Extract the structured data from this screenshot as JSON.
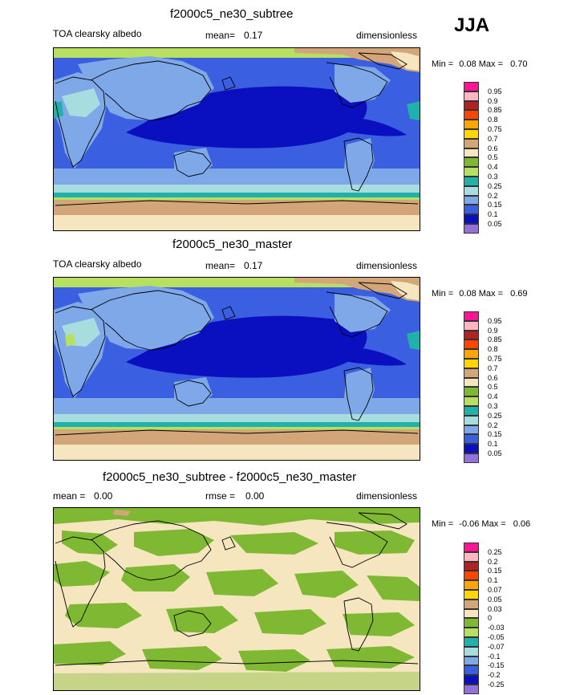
{
  "season": "JJA",
  "panels": [
    {
      "title": "f2000c5_ne30_subtree",
      "left_label": "TOA clearsky albedo",
      "mean_label": "mean=",
      "mean_value": "0.17",
      "units": "dimensionless",
      "min_label": "Min =",
      "min_value": "0.08",
      "max_label": "Max =",
      "max_value": "0.70",
      "colorbar_labels": [
        "0.95",
        "0.9",
        "0.85",
        "0.8",
        "0.75",
        "0.7",
        "0.6",
        "0.5",
        "0.4",
        "0.3",
        "0.25",
        "0.2",
        "0.15",
        "0.1",
        "0.05"
      ],
      "colorbar_colors": [
        "#ff1493",
        "#ffb6c1",
        "#b22222",
        "#ff4500",
        "#ffa500",
        "#ffd700",
        "#d2a679",
        "#f5e6c0",
        "#7fb832",
        "#b8e060",
        "#20b2aa",
        "#a8dde0",
        "#7fa8e8",
        "#3a5fe0",
        "#0a10c0",
        "#9370db"
      ]
    },
    {
      "title": "f2000c5_ne30_master",
      "left_label": "TOA clearsky albedo",
      "mean_label": "mean=",
      "mean_value": "0.17",
      "units": "dimensionless",
      "min_label": "Min =",
      "min_value": "0.08",
      "max_label": "Max =",
      "max_value": "0.69",
      "colorbar_labels": [
        "0.95",
        "0.9",
        "0.85",
        "0.8",
        "0.75",
        "0.7",
        "0.6",
        "0.5",
        "0.4",
        "0.3",
        "0.25",
        "0.2",
        "0.15",
        "0.1",
        "0.05"
      ],
      "colorbar_colors": [
        "#ff1493",
        "#ffb6c1",
        "#b22222",
        "#ff4500",
        "#ffa500",
        "#ffd700",
        "#d2a679",
        "#f5e6c0",
        "#7fb832",
        "#b8e060",
        "#20b2aa",
        "#a8dde0",
        "#7fa8e8",
        "#3a5fe0",
        "#0a10c0",
        "#9370db"
      ]
    },
    {
      "title": "f2000c5_ne30_subtree - f2000c5_ne30_master",
      "left_label": "mean =",
      "left_value": "0.00",
      "mean_label": "rmse =",
      "mean_value": "0.00",
      "units": "dimensionless",
      "min_label": "Min =",
      "min_value": "-0.06",
      "max_label": "Max =",
      "max_value": "0.06",
      "colorbar_labels": [
        "0.25",
        "0.2",
        "0.15",
        "0.1",
        "0.07",
        "0.05",
        "0.03",
        "0",
        "-0.03",
        "-0.05",
        "-0.07",
        "-0.1",
        "-0.15",
        "-0.2",
        "-0.25"
      ],
      "colorbar_colors": [
        "#ff1493",
        "#ffb6c1",
        "#b22222",
        "#ff4500",
        "#ffa500",
        "#ffd700",
        "#d2a679",
        "#f5e6c0",
        "#7fb832",
        "#b8e060",
        "#20b2aa",
        "#a8dde0",
        "#7fa8e8",
        "#3a5fe0",
        "#0a10c0",
        "#9370db"
      ]
    }
  ]
}
